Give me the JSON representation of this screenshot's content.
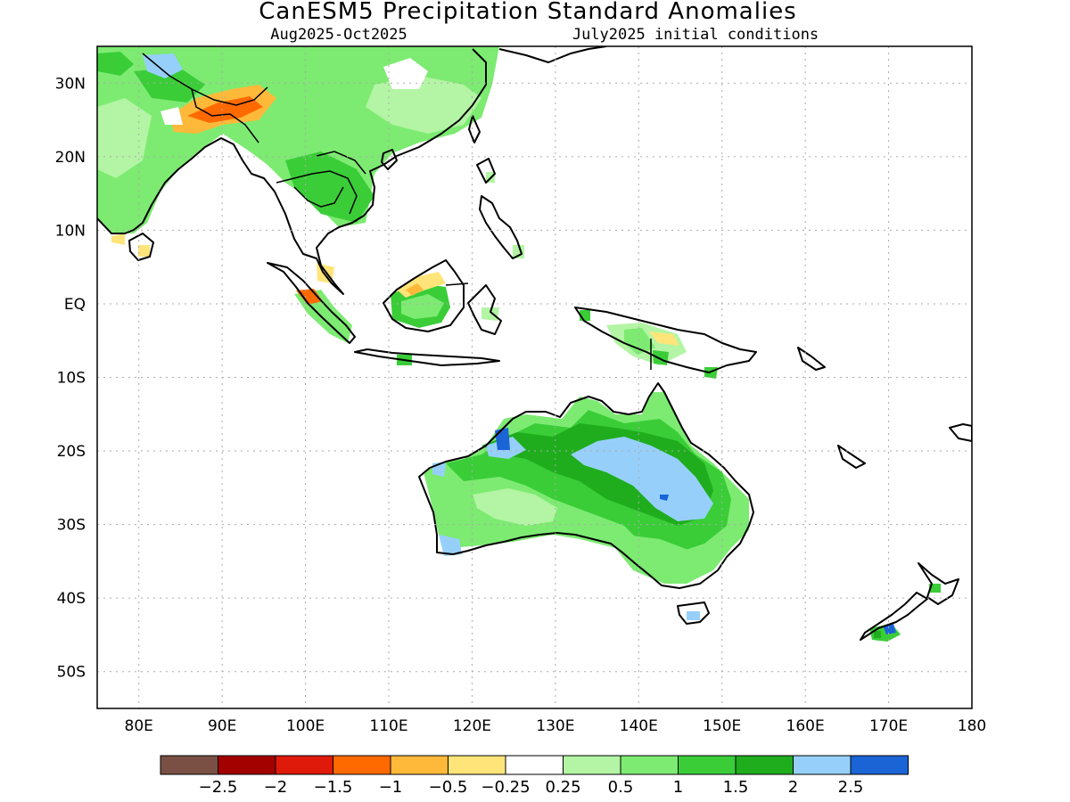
{
  "title": "CanESM5 Precipitation Standard Anomalies",
  "subtitle_left": "Aug2025-Oct2025",
  "subtitle_right": "July2025 initial conditions",
  "map": {
    "lon_ticks": [
      "80E",
      "90E",
      "100E",
      "110E",
      "120E",
      "130E",
      "140E",
      "150E",
      "160E",
      "170E",
      "180"
    ],
    "lat_ticks": [
      "30N",
      "20N",
      "10N",
      "EQ",
      "10S",
      "20S",
      "30S",
      "40S",
      "50S"
    ],
    "lon_range": [
      75,
      180
    ],
    "lat_range": [
      -55,
      35
    ],
    "grid": "dotted"
  },
  "colorbar": {
    "colors": [
      "#7a5045",
      "#a30000",
      "#e01a0a",
      "#ff6a00",
      "#ffb93a",
      "#ffe47a",
      "#ffffff",
      "#b3f5a4",
      "#7deb72",
      "#3acd38",
      "#1fad1d",
      "#96d0fa",
      "#1a64d6"
    ],
    "labels": [
      "−2.5",
      "−2",
      "−1.5",
      "−1",
      "−0.5",
      "−0.25",
      "0.25",
      "0.5",
      "1",
      "1.5",
      "2",
      "2.5"
    ]
  }
}
